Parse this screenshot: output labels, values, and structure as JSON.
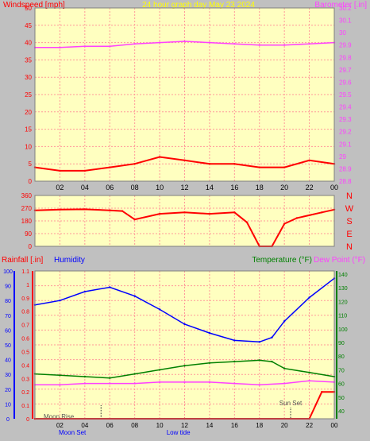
{
  "colors": {
    "background": "#c0c0c0",
    "plot_bg": "#ffffc0",
    "red": "#ff0000",
    "magenta": "#ff40ff",
    "blue": "#0000ff",
    "green": "#008000",
    "yellow_title": "#ffff00",
    "grid": "#ff9999"
  },
  "header": {
    "left_label": "Windspeed [mph]",
    "title": "24 hour graph day   May 23 2024",
    "right_label": "Barometer [.in]"
  },
  "x_ticks": [
    "02",
    "04",
    "06",
    "08",
    "10",
    "12",
    "14",
    "16",
    "18",
    "20",
    "22",
    "00"
  ],
  "panel1": {
    "left_ticks": [
      "0",
      "5",
      "10",
      "15",
      "20",
      "25",
      "30",
      "35",
      "40",
      "45",
      "50"
    ],
    "right_ticks": [
      "28.8",
      "28.9",
      "29",
      "29.1",
      "29.2",
      "29.3",
      "29.4",
      "29.5",
      "29.6",
      "29.7",
      "29.8",
      "29.9",
      "30",
      "30.1",
      "30.2"
    ]
  },
  "panel2": {
    "left_ticks": [
      "0",
      "90",
      "180",
      "270",
      "360"
    ],
    "compass": [
      "N",
      "W",
      "S",
      "E",
      "N"
    ]
  },
  "panel3": {
    "rain_label": "Rainfall [.in]",
    "humidity_label": "Humidity",
    "temp_label": "Temperature (°F)",
    "dew_label": "Dew Point (°F)",
    "humidity_ticks": [
      "0",
      "10",
      "20",
      "30",
      "40",
      "50",
      "60",
      "70",
      "80",
      "90",
      "100"
    ],
    "rain_ticks": [
      "0",
      "0.1",
      "0.2",
      "0.3",
      "0.4",
      "0.5",
      "0.6",
      "0.7",
      "0.8",
      "0.9",
      "1",
      "1.1"
    ],
    "temp_ticks": [
      "40",
      "50",
      "60",
      "70",
      "80",
      "90",
      "100",
      "110",
      "120",
      "130",
      "140"
    ],
    "moon_rise": "Moon Rise",
    "sun_set": "Sun Set",
    "bottom_labels": [
      "Moon Set",
      "Low tide"
    ]
  },
  "chart_data": [
    {
      "type": "line",
      "title": "24 hour graph day   May 23 2024",
      "x_ticks": [
        "02",
        "04",
        "06",
        "08",
        "10",
        "12",
        "14",
        "16",
        "18",
        "20",
        "22",
        "00"
      ],
      "series": [
        {
          "name": "Windspeed [mph]",
          "axis": "left",
          "ylim": [
            0,
            50
          ],
          "x": [
            "00",
            "02",
            "04",
            "06",
            "08",
            "10",
            "12",
            "14",
            "16",
            "18",
            "20",
            "22",
            "00"
          ],
          "values": [
            4,
            3,
            3,
            4,
            5,
            7,
            6,
            5,
            5,
            4,
            4,
            6,
            5
          ]
        },
        {
          "name": "Barometer [.in]",
          "axis": "right",
          "ylim": [
            28.8,
            30.2
          ],
          "x": [
            "00",
            "02",
            "04",
            "06",
            "08",
            "10",
            "12",
            "14",
            "16",
            "18",
            "20",
            "22",
            "00"
          ],
          "values": [
            29.88,
            29.88,
            29.89,
            29.89,
            29.91,
            29.92,
            29.93,
            29.92,
            29.91,
            29.9,
            29.9,
            29.91,
            29.92
          ]
        }
      ]
    },
    {
      "type": "line",
      "ylabel_right": [
        "N",
        "W",
        "S",
        "E",
        "N"
      ],
      "ylim": [
        0,
        360
      ],
      "series": [
        {
          "name": "Wind direction",
          "x": [
            "00",
            "02",
            "04",
            "06",
            "07",
            "08",
            "10",
            "12",
            "14",
            "16",
            "17",
            "18",
            "19",
            "20",
            "21",
            "22",
            "23",
            "00"
          ],
          "values": [
            255,
            260,
            262,
            255,
            250,
            190,
            230,
            240,
            230,
            240,
            170,
            0,
            0,
            160,
            200,
            220,
            240,
            260
          ]
        }
      ]
    },
    {
      "type": "line",
      "series": [
        {
          "name": "Humidity",
          "axis": "humidity",
          "ylim": [
            0,
            100
          ],
          "x": [
            "00",
            "02",
            "04",
            "06",
            "08",
            "10",
            "12",
            "14",
            "16",
            "18",
            "19",
            "20",
            "22",
            "00"
          ],
          "values": [
            77,
            80,
            86,
            89,
            83,
            74,
            64,
            58,
            53,
            52,
            55,
            66,
            82,
            95
          ]
        },
        {
          "name": "Temperature (°F)",
          "axis": "temp",
          "ylim": [
            30,
            145
          ],
          "x": [
            "00",
            "02",
            "04",
            "06",
            "08",
            "10",
            "12",
            "14",
            "16",
            "18",
            "19",
            "20",
            "22",
            "00"
          ],
          "values": [
            67,
            66,
            65,
            64,
            67,
            70,
            73,
            75,
            76,
            77,
            76,
            71,
            68,
            65
          ]
        },
        {
          "name": "Dew Point (°F)",
          "axis": "temp",
          "ylim": [
            30,
            145
          ],
          "x": [
            "00",
            "02",
            "04",
            "06",
            "08",
            "10",
            "12",
            "14",
            "16",
            "18",
            "20",
            "22",
            "00"
          ],
          "values": [
            59,
            59,
            60,
            60,
            60,
            61,
            61,
            61,
            60,
            59,
            60,
            62,
            61
          ]
        },
        {
          "name": "Rainfall [.in]",
          "axis": "rain",
          "ylim": [
            0,
            1.1
          ],
          "x": [
            "00",
            "12",
            "22",
            "23",
            "00"
          ],
          "values": [
            0,
            0,
            0,
            0.2,
            0.2
          ]
        }
      ]
    }
  ]
}
